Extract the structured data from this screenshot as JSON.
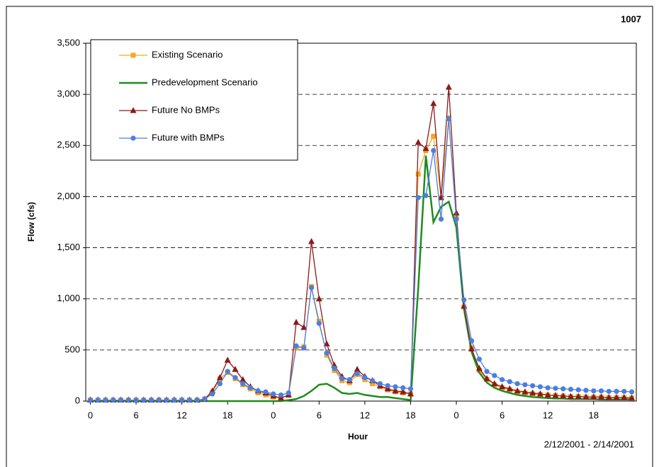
{
  "chart_data": {
    "type": "line",
    "title": "1007",
    "x_label": "Hour",
    "y_label": "Flow (cfs)",
    "annotation": "2/12/2001 - 2/14/2001",
    "x": [
      0,
      1,
      2,
      3,
      4,
      5,
      6,
      7,
      8,
      9,
      10,
      11,
      12,
      13,
      14,
      15,
      16,
      17,
      18,
      19,
      20,
      21,
      22,
      23,
      24,
      25,
      26,
      27,
      28,
      29,
      30,
      31,
      32,
      33,
      34,
      35,
      36,
      37,
      38,
      39,
      40,
      41,
      42,
      43,
      44,
      45,
      46,
      47,
      48,
      49,
      50,
      51,
      52,
      53,
      54,
      55,
      56,
      57,
      58,
      59,
      60,
      61,
      62,
      63,
      64,
      65,
      66,
      67,
      68,
      69,
      70,
      71
    ],
    "xlim": [
      -0.6,
      71.6
    ],
    "xticks": [
      0,
      6,
      12,
      18,
      {
        "value": 24,
        "label": "0"
      },
      {
        "value": 30,
        "label": "6"
      },
      {
        "value": 36,
        "label": "12"
      },
      {
        "value": 42,
        "label": "18"
      },
      {
        "value": 48,
        "label": "0"
      },
      {
        "value": 54,
        "label": "6"
      },
      {
        "value": 60,
        "label": "12"
      },
      {
        "value": 66,
        "label": "18"
      }
    ],
    "ylim": [
      0,
      3500
    ],
    "yticks": [
      0,
      500,
      {
        "value": 1000,
        "label": "1,000"
      },
      {
        "value": 1500,
        "label": "1,500"
      },
      {
        "value": 2000,
        "label": "2,000"
      },
      {
        "value": 2500,
        "label": "2,500"
      },
      {
        "value": 3000,
        "label": "3,000"
      },
      {
        "value": 3500,
        "label": "3,500"
      }
    ],
    "grid": true,
    "legend": "upper left",
    "series": [
      {
        "name": "Existing Scenario",
        "color": "#f5a623",
        "marker": "square",
        "values": [
          10,
          10,
          10,
          10,
          10,
          10,
          10,
          10,
          10,
          10,
          10,
          10,
          10,
          10,
          10,
          20,
          80,
          220,
          280,
          220,
          160,
          120,
          80,
          60,
          40,
          30,
          60,
          520,
          530,
          1120,
          780,
          450,
          300,
          200,
          180,
          260,
          210,
          170,
          140,
          110,
          90,
          80,
          70,
          2220,
          2450,
          2590,
          1990,
          2770,
          1790,
          920,
          520,
          300,
          210,
          160,
          130,
          110,
          90,
          80,
          70,
          65,
          60,
          55,
          50,
          45,
          45,
          40,
          40,
          40,
          35,
          35,
          35,
          30
        ]
      },
      {
        "name": "Predevelopment Scenario",
        "color": "#1e8c1e",
        "marker": "none",
        "values": [
          0,
          0,
          0,
          0,
          0,
          0,
          0,
          0,
          0,
          0,
          0,
          0,
          0,
          0,
          0,
          0,
          0,
          0,
          0,
          0,
          0,
          0,
          0,
          0,
          0,
          0,
          10,
          20,
          50,
          100,
          160,
          170,
          130,
          80,
          70,
          80,
          60,
          50,
          40,
          40,
          30,
          20,
          10,
          1100,
          2400,
          1750,
          1900,
          1950,
          1700,
          900,
          480,
          280,
          180,
          130,
          100,
          80,
          60,
          50,
          40,
          35,
          30,
          25,
          25,
          20,
          20,
          20,
          20,
          15,
          15,
          15,
          15,
          15
        ]
      },
      {
        "name": "Future No BMPs",
        "color": "#8b1a1a",
        "marker": "triangle",
        "values": [
          10,
          10,
          10,
          10,
          10,
          10,
          10,
          10,
          10,
          10,
          10,
          10,
          10,
          10,
          10,
          20,
          100,
          230,
          400,
          310,
          210,
          140,
          100,
          80,
          50,
          30,
          60,
          770,
          720,
          1560,
          1000,
          560,
          350,
          240,
          200,
          310,
          240,
          200,
          150,
          120,
          100,
          90,
          70,
          2530,
          2470,
          2910,
          1990,
          3070,
          1840,
          930,
          510,
          320,
          220,
          170,
          140,
          120,
          100,
          90,
          80,
          70,
          60,
          55,
          50,
          45,
          45,
          40,
          40,
          40,
          35,
          35,
          35,
          30
        ]
      },
      {
        "name": "Future with BMPs",
        "color": "#4a7fe0",
        "marker": "circle",
        "values": [
          10,
          10,
          10,
          10,
          10,
          10,
          10,
          10,
          10,
          10,
          10,
          10,
          10,
          10,
          10,
          20,
          70,
          170,
          290,
          230,
          170,
          130,
          100,
          90,
          70,
          60,
          80,
          540,
          520,
          1110,
          760,
          470,
          320,
          220,
          210,
          270,
          230,
          200,
          170,
          150,
          140,
          130,
          120,
          1990,
          2010,
          2450,
          1780,
          2760,
          1780,
          990,
          590,
          410,
          290,
          250,
          210,
          190,
          170,
          160,
          150,
          140,
          130,
          125,
          120,
          115,
          110,
          105,
          100,
          100,
          95,
          95,
          95,
          90
        ]
      }
    ]
  }
}
